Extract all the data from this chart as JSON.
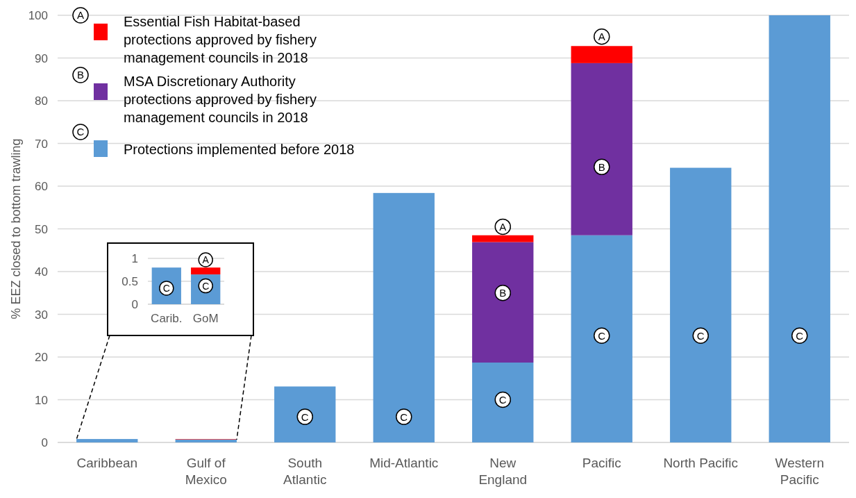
{
  "chart_data": [
    {
      "type": "bar",
      "stacked": true,
      "ylabel": "% EEZ closed to bottom trawling",
      "categories": [
        "Caribbean",
        "Gulf of\nMexico",
        "South\nAtlantic",
        "Mid-Atlantic",
        "New\nEngland",
        "Pacific",
        "North Pacific",
        "Western\nPacific"
      ],
      "series": [
        {
          "name": "Protections implemented before 2018",
          "color": "#5b9bd5",
          "values": [
            0.8,
            0.7,
            13.1,
            58.4,
            18.7,
            48.5,
            64.3,
            100
          ]
        },
        {
          "name": "MSA Discretionary Authority\nprotections approved by fishery\nmanagement councils in 2018",
          "color": "#7030a0",
          "values": [
            0,
            0,
            0,
            0,
            28.2,
            40.3,
            0,
            0
          ]
        },
        {
          "name": "Essential Fish Habitat-based\nprotections approved by fishery\nmanagement councils in 2018",
          "color": "#ff0000",
          "values": [
            0,
            0.1,
            0,
            0,
            1.6,
            4.0,
            0,
            0
          ]
        }
      ],
      "ylim": [
        0,
        100
      ],
      "yticks": [
        0,
        10,
        20,
        30,
        40,
        50,
        60,
        70,
        80,
        90,
        100
      ],
      "grid": "y",
      "legend": "top left",
      "annotations": [
        "A",
        "B",
        "C",
        {
          "text": "C",
          "x": "South\nAtlantic",
          "y": 6
        },
        {
          "text": "C",
          "x": "Mid-Atlantic",
          "y": 6
        },
        {
          "text": "C",
          "x": "New\nEngland",
          "y": 10
        },
        {
          "text": "B",
          "x": "New\nEngland",
          "y": 35
        },
        {
          "text": "A",
          "x": "New\nEngland",
          "y": 50.5
        },
        {
          "text": "C",
          "x": "Pacific",
          "y": 25
        },
        {
          "text": "B",
          "x": "Pacific",
          "y": 64.5
        },
        {
          "text": "A",
          "x": "Pacific",
          "y": 95
        },
        {
          "text": "C",
          "x": "North Pacific",
          "y": 25
        },
        {
          "text": "C",
          "x": "Western\nPacific",
          "y": 25
        }
      ]
    },
    {
      "type": "bar",
      "stacked": true,
      "categories": [
        "Carib.",
        "GoM"
      ],
      "series": [
        {
          "color": "#5b9bd5",
          "values": [
            0.8,
            0.65
          ]
        },
        {
          "color": "#ff0000",
          "values": [
            0,
            0.15
          ]
        }
      ],
      "ylim": [
        0,
        1
      ],
      "yticks": [
        0,
        0.5,
        1
      ],
      "grid": "y",
      "annotations": [
        {
          "text": "C",
          "x": "Carib.",
          "y": 0.35
        },
        {
          "text": "C",
          "x": "GoM",
          "y": 0.4
        },
        {
          "text": "A",
          "x": "GoM",
          "y": 0.97
        }
      ]
    }
  ]
}
